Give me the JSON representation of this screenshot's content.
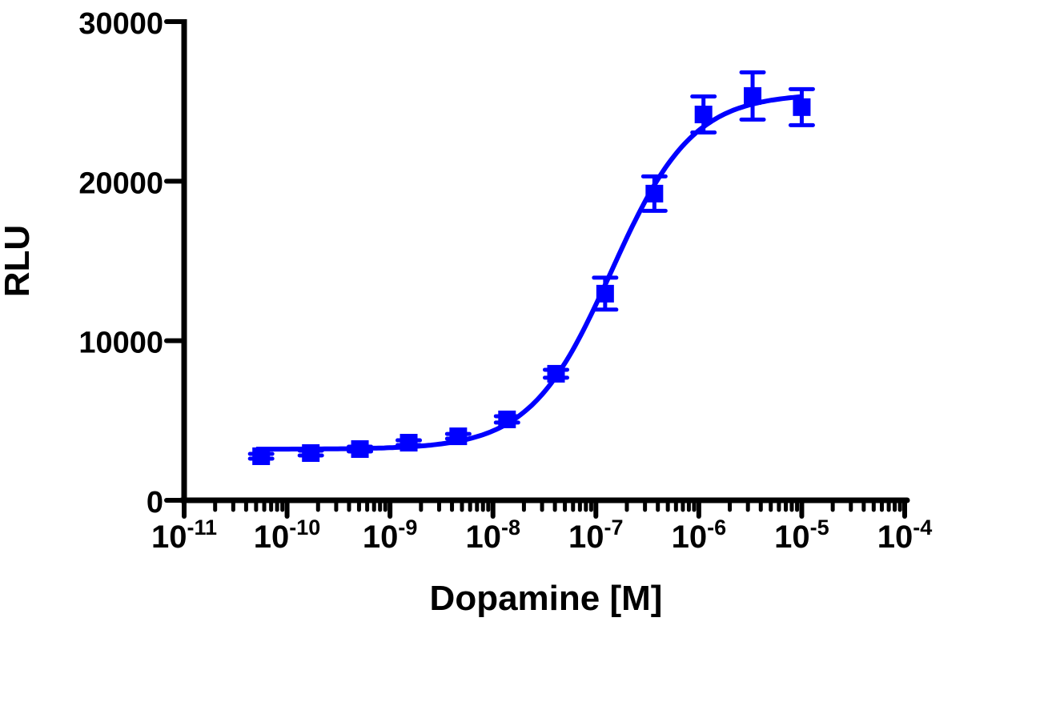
{
  "chart_data": {
    "type": "scatter",
    "xlabel": "Dopamine [M]",
    "ylabel": "RLU",
    "xscale": "log",
    "xlim": [
      1e-11,
      0.0001
    ],
    "ylim": [
      0,
      30000
    ],
    "grid": false,
    "legend": "none",
    "color": "#0000ff",
    "x_tick_labels": [
      {
        "base": "10",
        "exp": "-11",
        "value": 1e-11
      },
      {
        "base": "10",
        "exp": "-10",
        "value": 1e-10
      },
      {
        "base": "10",
        "exp": "-9",
        "value": 1e-09
      },
      {
        "base": "10",
        "exp": "-8",
        "value": 1e-08
      },
      {
        "base": "10",
        "exp": "-7",
        "value": 1e-07
      },
      {
        "base": "10",
        "exp": "-6",
        "value": 1e-06
      },
      {
        "base": "10",
        "exp": "-5",
        "value": 1e-05
      },
      {
        "base": "10",
        "exp": "-4",
        "value": 0.0001
      }
    ],
    "y_ticks": [
      0,
      10000,
      20000,
      30000
    ],
    "y_tick_labels": [
      "0",
      "10000",
      "20000",
      "30000"
    ],
    "series": [
      {
        "marker": "square",
        "x": [
          5.6e-11,
          1.7e-10,
          5.1e-10,
          1.52e-09,
          4.6e-09,
          1.37e-08,
          4.1e-08,
          1.23e-07,
          3.7e-07,
          1.11e-06,
          3.33e-06,
          1e-05
        ],
        "y": [
          2760,
          2960,
          3210,
          3610,
          4010,
          5070,
          7930,
          12950,
          19220,
          24180,
          25340,
          24640
        ],
        "error": [
          150,
          150,
          150,
          150,
          150,
          200,
          250,
          1000,
          1080,
          1130,
          1480,
          1130
        ]
      }
    ],
    "fit": {
      "model": "sigmoidal dose-response",
      "bottom": 3200,
      "top": 25500,
      "logEC50": -6.85,
      "hill_slope": 1.1,
      "x_range": [
        5e-11,
        1e-05
      ]
    }
  }
}
